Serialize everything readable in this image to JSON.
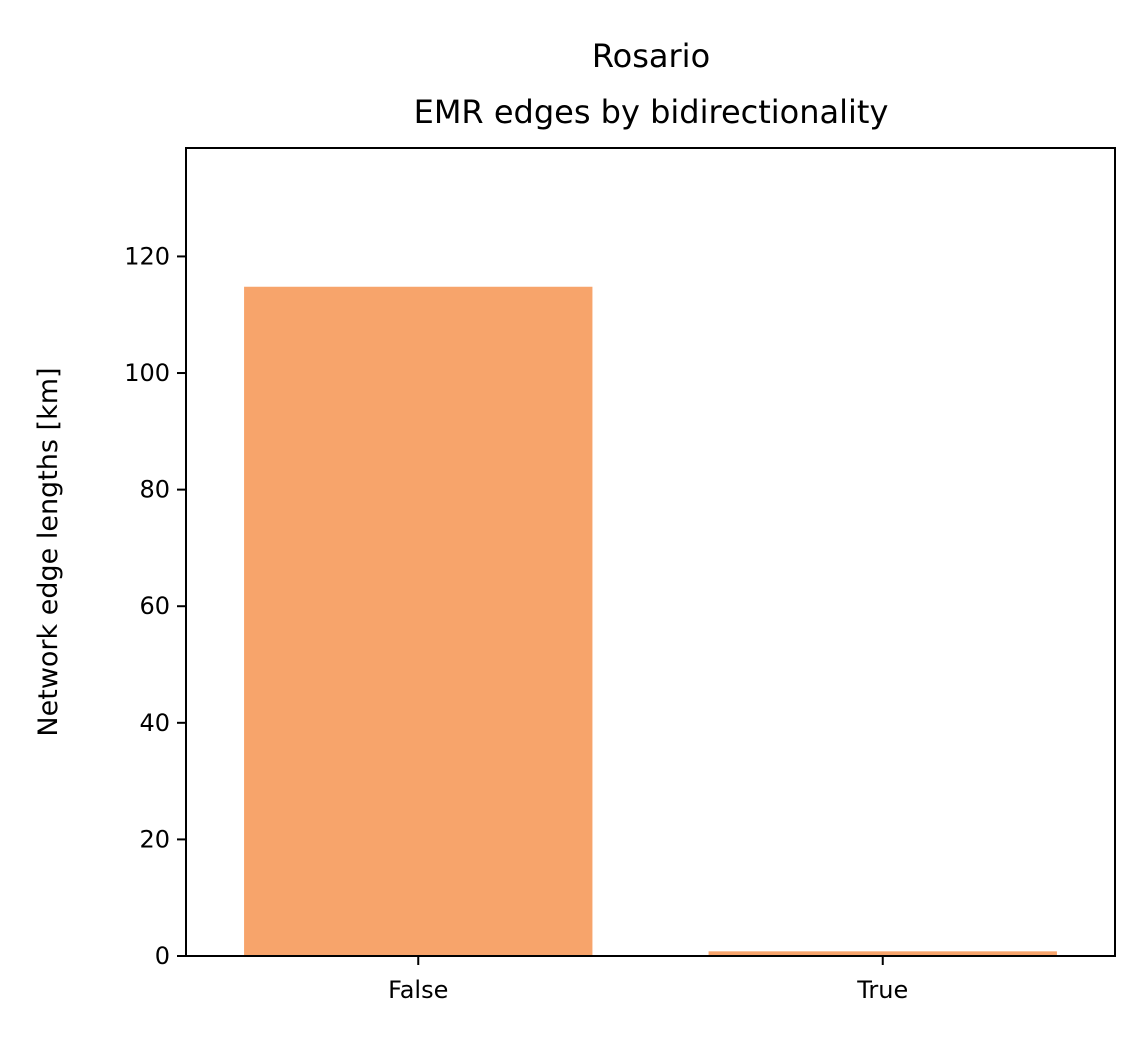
{
  "chart_data": {
    "type": "bar",
    "title": "Rosario",
    "subtitle": "EMR edges by bidirectionality",
    "xlabel": "",
    "ylabel": "Network edge lengths [km]",
    "categories": [
      "False",
      "True"
    ],
    "values": [
      114.8,
      0.8
    ],
    "ylim": [
      0,
      138.6
    ],
    "yticks": [
      0,
      20,
      40,
      60,
      80,
      100,
      120
    ],
    "ytick_labels": [
      "0",
      "20",
      "40",
      "60",
      "80",
      "100",
      "120"
    ],
    "grid": false,
    "legend": "none",
    "bar_color": "#F7A46B",
    "axis_color": "#000000"
  }
}
